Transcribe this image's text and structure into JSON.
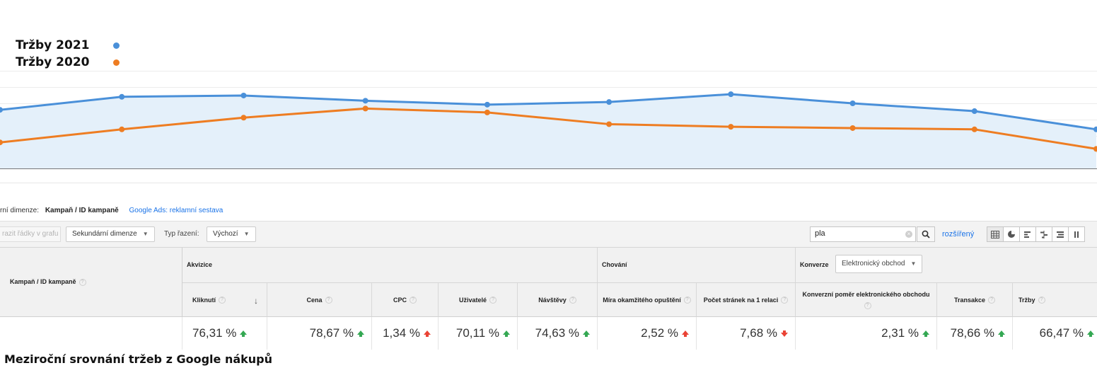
{
  "legend": {
    "series_1": "Tržby 2021",
    "series_2": "Tržby 2020"
  },
  "colors": {
    "series_1": "#4a90d9",
    "series_2": "#ee7d22",
    "area_fill": "#e4f0fa"
  },
  "chart_data": {
    "type": "line",
    "series": [
      {
        "name": "Tržby 2021",
        "values": [
          85,
          95,
          96,
          92,
          89,
          91,
          97,
          90,
          84,
          70
        ]
      },
      {
        "name": "Tržby 2020",
        "values": [
          60,
          70,
          79,
          86,
          83,
          74,
          72,
          71,
          70,
          55
        ]
      }
    ],
    "ylim": [
      40,
      115
    ],
    "grid": true,
    "legend_position": "top-left"
  },
  "dimension_row": {
    "label": "rní dimenze:",
    "active": "Kampaň / ID kampaně",
    "link": "Google Ads: reklamní sestava"
  },
  "toolbar": {
    "plot_rows": "razit řádky v grafu",
    "secondary_dimension": "Sekundární dimenze",
    "sort_type_label": "Typ řazení:",
    "sort_type_value": "Výchozí",
    "search_value": "pla",
    "advanced_link": "rozšířený"
  },
  "view_icons": [
    "table-view-icon",
    "pie-view-icon",
    "bar-view-icon",
    "comparison-view-icon",
    "pivot-view-icon",
    "term-cloud-icon"
  ],
  "table": {
    "campaign_header": "Kampaň / ID kampaně",
    "groups": {
      "acquisition": "Akvizice",
      "behavior": "Chování",
      "conversions": "Konverze",
      "conversions_select": "Elektronický obchod"
    },
    "columns": [
      {
        "label": "Kliknutí",
        "value": "76,31 %"
      },
      {
        "label": "Cena",
        "value": "78,67 %"
      },
      {
        "label": "CPC",
        "value": "1,34 %"
      },
      {
        "label": "Uživatelé",
        "value": "70,11 %"
      },
      {
        "label": "Návštěvy",
        "value": "74,63 %"
      },
      {
        "label": "Míra okamžitého opuštění",
        "value": "2,52 %"
      },
      {
        "label": "Počet stránek na 1 relaci",
        "value": "7,68 %"
      },
      {
        "label": "Konverzní poměr elektronického obchodu",
        "value": "2,31 %"
      },
      {
        "label": "Transakce",
        "value": "78,66 %"
      },
      {
        "label": "Tržby",
        "value": "66,47 %"
      }
    ]
  },
  "caption": "Meziroční srovnání tržeb z Google nákupů"
}
